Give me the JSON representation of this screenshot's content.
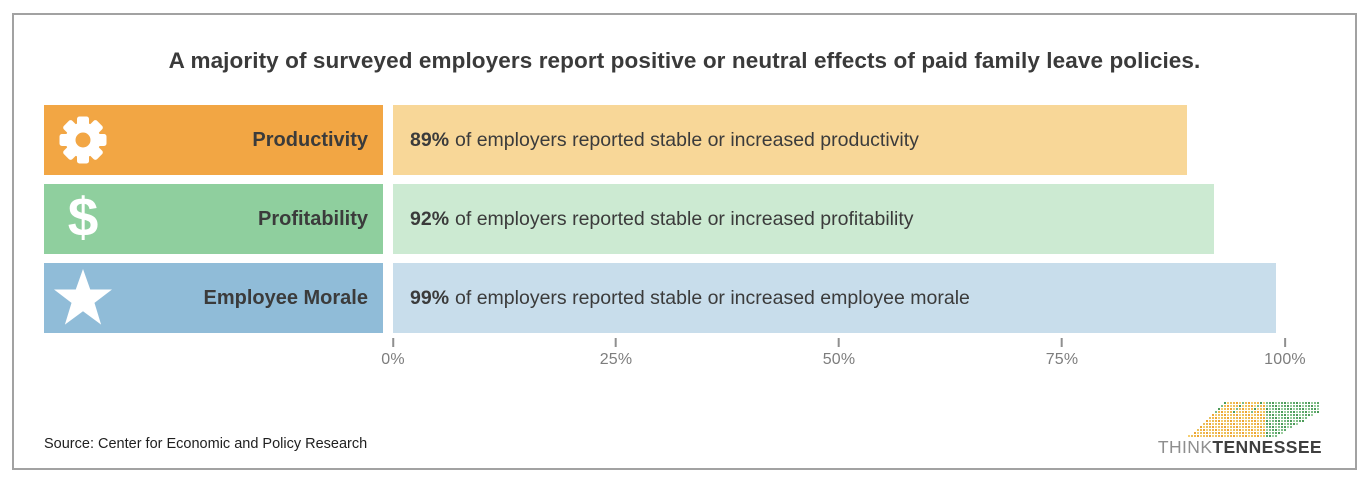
{
  "title": "A majority of surveyed employers report positive or neutral effects of paid family leave policies.",
  "chart_data": {
    "type": "bar",
    "orientation": "horizontal",
    "title": "A majority of surveyed employers report positive or neutral effects of paid family leave policies.",
    "categories": [
      "Productivity",
      "Profitability",
      "Employee Morale"
    ],
    "values": [
      89,
      92,
      99
    ],
    "xlim": [
      0,
      100
    ],
    "x_ticks": [
      "0%",
      "25%",
      "50%",
      "75%",
      "100%"
    ],
    "legend": "none",
    "rows": [
      {
        "label": "Productivity",
        "icon": "gear-icon",
        "value": 89,
        "pct_label": "89%",
        "text": "of employers reported stable or increased productivity",
        "label_bg": "#f2a644",
        "bar_bg": "#f8d798"
      },
      {
        "label": "Profitability",
        "icon": "dollar-icon",
        "value": 92,
        "pct_label": "92%",
        "text": "of employers reported stable or increased profitability",
        "label_bg": "#8fcf9e",
        "bar_bg": "#ccead2"
      },
      {
        "label": "Employee Morale",
        "icon": "star-icon",
        "value": 99,
        "pct_label": "99%",
        "text": "of employers reported stable or increased employee morale",
        "label_bg": "#90bcd8",
        "bar_bg": "#c8ddeb"
      }
    ]
  },
  "footer": {
    "source": "Source: Center for Economic and Policy Research",
    "logo": {
      "think": "THINK",
      "tennessee": "TENNESSEE",
      "map_greens": [
        "#4d9b5a",
        "#5ea96a",
        "#7cbb85",
        "#9ccf9f"
      ],
      "map_oranges": [
        "#eca636",
        "#f2b84d",
        "#e9c05c",
        "#f6cf72"
      ]
    }
  },
  "colors": {
    "title_text": "#3a3a3a",
    "bar_text": "#3b3b3b",
    "axis_text": "#7d7d7d",
    "frame_border": "#a2a2a2"
  }
}
